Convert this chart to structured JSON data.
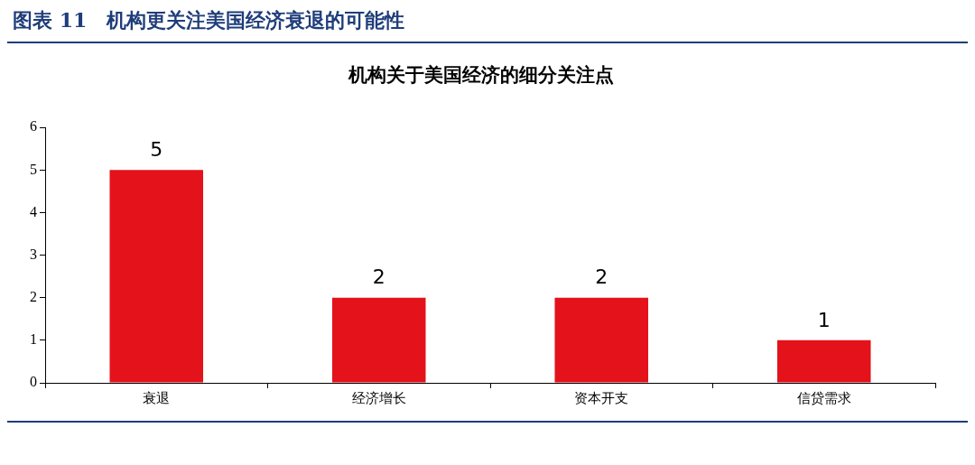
{
  "chart_data": {
    "type": "bar",
    "title": "图表 11　机构更关注美国经济衰退的可能性",
    "subtitle": "机构关于美国经济的细分关注点",
    "categories": [
      "衰退",
      "经济增长",
      "资本开支",
      "信贷需求"
    ],
    "values": [
      5,
      2,
      2,
      1
    ],
    "color": "#e3121b",
    "ylim": [
      0,
      6
    ],
    "yticks": [
      0,
      1,
      2,
      3,
      4,
      5,
      6
    ],
    "grid": false,
    "legend": false,
    "data_labels": true
  }
}
